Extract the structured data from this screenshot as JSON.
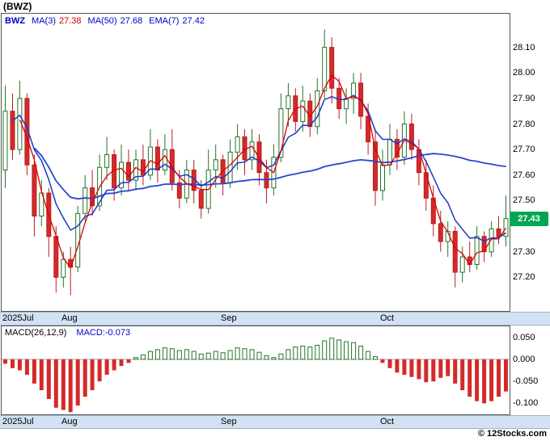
{
  "header": {
    "title": "(BWZ)"
  },
  "legend": {
    "symbol": "BWZ",
    "ma3_label": "MA(3)",
    "ma3_value": "27.38",
    "ma50_label": "MA(50)",
    "ma50_value": "27.68",
    "ema7_label": "EMA(7)",
    "ema7_value": "27.42"
  },
  "price_badge": {
    "value": "27.43",
    "bg": "#00a651"
  },
  "macd": {
    "label": "MACD(26,12,9)",
    "value_label": "MACD:-0.073"
  },
  "footer": {
    "copyright": "© 12Stocks.com"
  },
  "colors": {
    "up_fill": "#ffffff",
    "up_border": "#267326",
    "down_fill": "#d42a2a",
    "down_border": "#b91d1d",
    "ma3_line": "#dd0000",
    "ma50_line": "#2846d0",
    "ema7_line": "#1a3ac8",
    "badge_bg": "#00a651",
    "strip_bg": "#d2e2f2",
    "legend_blue": "#0000cc",
    "macd_pos_border": "#267326",
    "macd_neg_fill": "#d42a2a"
  },
  "chart_data": [
    {
      "type": "candlestick",
      "symbol": "BWZ",
      "title": "(BWZ)",
      "ylim": [
        27.1,
        28.2
      ],
      "y_tick_labels": [
        "28.10",
        "28.00",
        "27.90",
        "27.80",
        "27.70",
        "27.60",
        "27.50",
        "27.30",
        "27.20"
      ],
      "x_tick_labels": [
        "2025Jul",
        "Aug",
        "Sep",
        "Oct"
      ],
      "x_tick_indices": [
        0,
        9,
        31,
        53
      ],
      "last_price": 27.43,
      "legend_position": "top-left",
      "grid": false,
      "overlays": [
        {
          "name": "MA(3)",
          "period": 3,
          "last_value": 27.38,
          "color": "#dd0000"
        },
        {
          "name": "MA(50)",
          "period": 50,
          "last_value": 27.68,
          "color": "#2846d0"
        },
        {
          "name": "EMA(7)",
          "period": 7,
          "last_value": 27.42,
          "color": "#1a3ac8"
        }
      ],
      "candles_ohlc": [
        [
          27.62,
          27.95,
          27.55,
          27.85
        ],
        [
          27.85,
          27.92,
          27.66,
          27.7
        ],
        [
          27.7,
          27.97,
          27.68,
          27.9
        ],
        [
          27.9,
          27.92,
          27.6,
          27.64
        ],
        [
          27.64,
          27.68,
          27.36,
          27.44
        ],
        [
          27.44,
          27.58,
          27.4,
          27.53
        ],
        [
          27.53,
          27.55,
          27.28,
          27.36
        ],
        [
          27.36,
          27.4,
          27.14,
          27.2
        ],
        [
          27.2,
          27.3,
          27.16,
          27.27
        ],
        [
          27.27,
          27.32,
          27.13,
          27.24
        ],
        [
          27.24,
          27.48,
          27.22,
          27.45
        ],
        [
          27.45,
          27.6,
          27.42,
          27.55
        ],
        [
          27.55,
          27.62,
          27.44,
          27.48
        ],
        [
          27.48,
          27.68,
          27.46,
          27.63
        ],
        [
          27.63,
          27.75,
          27.58,
          27.68
        ],
        [
          27.68,
          27.7,
          27.5,
          27.55
        ],
        [
          27.55,
          27.72,
          27.52,
          27.65
        ],
        [
          27.65,
          27.7,
          27.54,
          27.58
        ],
        [
          27.58,
          27.7,
          27.54,
          27.66
        ],
        [
          27.66,
          27.72,
          27.56,
          27.6
        ],
        [
          27.6,
          27.78,
          27.58,
          27.71
        ],
        [
          27.71,
          27.74,
          27.57,
          27.62
        ],
        [
          27.62,
          27.76,
          27.6,
          27.7
        ],
        [
          27.7,
          27.78,
          27.54,
          27.57
        ],
        [
          27.57,
          27.62,
          27.47,
          27.51
        ],
        [
          27.51,
          27.66,
          27.49,
          27.62
        ],
        [
          27.62,
          27.66,
          27.49,
          27.54
        ],
        [
          27.54,
          27.58,
          27.43,
          27.47
        ],
        [
          27.47,
          27.7,
          27.45,
          27.62
        ],
        [
          27.62,
          27.72,
          27.55,
          27.66
        ],
        [
          27.66,
          27.68,
          27.52,
          27.57
        ],
        [
          27.57,
          27.74,
          27.55,
          27.69
        ],
        [
          27.69,
          27.8,
          27.62,
          27.75
        ],
        [
          27.75,
          27.78,
          27.6,
          27.66
        ],
        [
          27.66,
          27.78,
          27.62,
          27.73
        ],
        [
          27.73,
          27.76,
          27.56,
          27.61
        ],
        [
          27.61,
          27.66,
          27.49,
          27.55
        ],
        [
          27.55,
          27.72,
          27.52,
          27.67
        ],
        [
          27.67,
          27.92,
          27.65,
          27.86
        ],
        [
          27.86,
          27.96,
          27.79,
          27.91
        ],
        [
          27.91,
          27.94,
          27.77,
          27.81
        ],
        [
          27.81,
          27.95,
          27.77,
          27.89
        ],
        [
          27.89,
          27.92,
          27.75,
          27.79
        ],
        [
          27.79,
          27.98,
          27.76,
          27.93
        ],
        [
          27.93,
          28.17,
          27.9,
          28.1
        ],
        [
          28.1,
          28.14,
          27.88,
          27.94
        ],
        [
          27.94,
          27.98,
          27.82,
          27.86
        ],
        [
          27.86,
          27.94,
          27.8,
          27.9
        ],
        [
          27.9,
          28.0,
          27.84,
          27.96
        ],
        [
          27.96,
          28.0,
          27.78,
          27.83
        ],
        [
          27.83,
          27.88,
          27.68,
          27.73
        ],
        [
          27.73,
          27.78,
          27.48,
          27.54
        ],
        [
          27.54,
          27.7,
          27.5,
          27.64
        ],
        [
          27.64,
          27.8,
          27.6,
          27.74
        ],
        [
          27.74,
          27.78,
          27.62,
          27.67
        ],
        [
          27.67,
          27.85,
          27.64,
          27.8
        ],
        [
          27.8,
          27.84,
          27.66,
          27.7
        ],
        [
          27.7,
          27.74,
          27.56,
          27.61
        ],
        [
          27.61,
          27.66,
          27.46,
          27.51
        ],
        [
          27.51,
          27.56,
          27.36,
          27.41
        ],
        [
          27.41,
          27.46,
          27.3,
          27.34
        ],
        [
          27.34,
          27.42,
          27.28,
          27.38
        ],
        [
          27.38,
          27.4,
          27.16,
          27.22
        ],
        [
          27.22,
          27.32,
          27.18,
          27.28
        ],
        [
          27.28,
          27.34,
          27.22,
          27.25
        ],
        [
          27.25,
          27.4,
          27.23,
          27.36
        ],
        [
          27.36,
          27.38,
          27.26,
          27.3
        ],
        [
          27.3,
          27.42,
          27.28,
          27.39
        ],
        [
          27.39,
          27.44,
          27.33,
          27.36
        ],
        [
          27.36,
          27.52,
          27.32,
          27.43
        ]
      ]
    },
    {
      "type": "bar",
      "title": "MACD(26,12,9)",
      "last_value": -0.073,
      "ylim": [
        -0.125,
        0.075
      ],
      "y_tick_labels": [
        "0.050",
        "0.000",
        "-0.050",
        "-0.100"
      ],
      "x_tick_labels": [
        "2025Jul",
        "Aug",
        "Sep",
        "Oct"
      ],
      "x_tick_indices": [
        0,
        9,
        31,
        53
      ],
      "values": [
        -0.01,
        -0.02,
        -0.025,
        -0.035,
        -0.055,
        -0.07,
        -0.09,
        -0.11,
        -0.115,
        -0.12,
        -0.105,
        -0.085,
        -0.07,
        -0.05,
        -0.035,
        -0.025,
        -0.015,
        -0.008,
        0.004,
        0.01,
        0.018,
        0.022,
        0.026,
        0.024,
        0.02,
        0.022,
        0.018,
        0.012,
        0.014,
        0.018,
        0.015,
        0.02,
        0.026,
        0.024,
        0.022,
        0.016,
        0.008,
        0.004,
        0.012,
        0.022,
        0.028,
        0.03,
        0.028,
        0.032,
        0.042,
        0.048,
        0.044,
        0.04,
        0.038,
        0.03,
        0.018,
        0.006,
        -0.008,
        -0.02,
        -0.03,
        -0.035,
        -0.04,
        -0.045,
        -0.052,
        -0.05,
        -0.042,
        -0.038,
        -0.055,
        -0.07,
        -0.085,
        -0.095,
        -0.1,
        -0.095,
        -0.085,
        -0.073
      ]
    }
  ]
}
